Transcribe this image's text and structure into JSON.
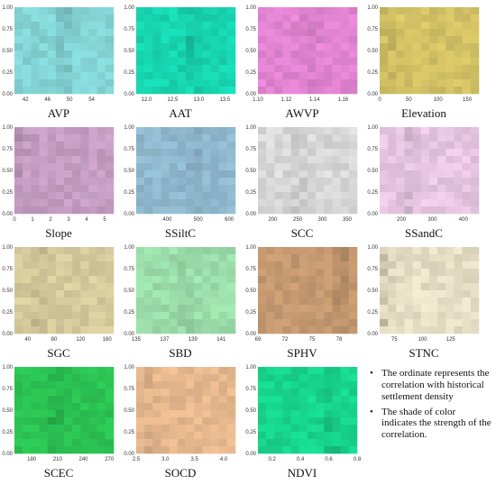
{
  "chart_data": [
    {
      "type": "heatmap",
      "title": "AVP",
      "color": "#8fe6e8",
      "ylim": [
        0,
        1
      ],
      "yticks": [
        "0.00",
        "0.25",
        "0.50",
        "0.75",
        "1.00"
      ],
      "xticks": [
        "42",
        "46",
        "50",
        "54"
      ],
      "xlim": [
        40,
        58
      ],
      "hotspot_x": 0.5
    },
    {
      "type": "heatmap",
      "title": "AAT",
      "color": "#19e8c0",
      "ylim": [
        0,
        1
      ],
      "yticks": [
        "0.00",
        "0.25",
        "0.50",
        "0.75",
        "1.00"
      ],
      "xticks": [
        "12.0",
        "12.5",
        "13.0",
        "13.5"
      ],
      "xlim": [
        11.8,
        13.7
      ],
      "hotspot_x": 0.55
    },
    {
      "type": "heatmap",
      "title": "AWVP",
      "color": "#f58fe3",
      "ylim": [
        0,
        1
      ],
      "yticks": [
        "0.00",
        "0.25",
        "0.50",
        "0.75",
        "1.00"
      ],
      "xticks": [
        "1.10",
        "1.12",
        "1.14",
        "1.16"
      ],
      "xlim": [
        1.1,
        1.17
      ],
      "hotspot_x": 0.55
    },
    {
      "type": "heatmap",
      "title": "Elevation",
      "color": "#e6d36e",
      "ylim": [
        0,
        1
      ],
      "yticks": [
        "0.00",
        "0.25",
        "0.50",
        "0.75",
        "1.00"
      ],
      "xticks": [
        "0",
        "50",
        "100",
        "150"
      ],
      "xlim": [
        0,
        170
      ],
      "hotspot_x": 0.05
    },
    {
      "type": "heatmap",
      "title": "Slope",
      "color": "#d6abd4",
      "ylim": [
        0,
        1
      ],
      "yticks": [
        "0.00",
        "0.25",
        "0.50",
        "0.75",
        "1.00"
      ],
      "xticks": [
        "0",
        "1",
        "2",
        "3",
        "4",
        "5"
      ],
      "xlim": [
        0,
        5.5
      ],
      "hotspot_x": 0.03
    },
    {
      "type": "heatmap",
      "title": "SSiltC",
      "color": "#9cc9e0",
      "ylim": [
        0,
        1
      ],
      "yticks": [
        "0.00",
        "0.25",
        "0.50",
        "0.75",
        "1.00"
      ],
      "xticks": [
        "400",
        "500",
        "600"
      ],
      "xlim": [
        300,
        620
      ],
      "hotspot_x": 0.6
    },
    {
      "type": "heatmap",
      "title": "SCC",
      "color": "#ebebeb",
      "ylim": [
        0,
        1
      ],
      "yticks": [
        "0.00",
        "0.25",
        "0.50",
        "0.75",
        "1.00"
      ],
      "xticks": [
        "200",
        "250",
        "300",
        "350"
      ],
      "xlim": [
        170,
        370
      ],
      "hotspot_x": 0.4
    },
    {
      "type": "heatmap",
      "title": "SSandC",
      "color": "#fbd6f6",
      "ylim": [
        0,
        1
      ],
      "yticks": [
        "0.00",
        "0.25",
        "0.50",
        "0.75",
        "1.00"
      ],
      "xticks": [
        "200",
        "300",
        "400"
      ],
      "xlim": [
        130,
        450
      ],
      "hotspot_x": 0.3
    },
    {
      "type": "heatmap",
      "title": "SGC",
      "color": "#e8dcaa",
      "ylim": [
        0,
        1
      ],
      "yticks": [
        "0.00",
        "0.25",
        "0.50",
        "0.75",
        "1.00"
      ],
      "xticks": [
        "40",
        "80",
        "120",
        "160"
      ],
      "xlim": [
        20,
        170
      ],
      "hotspot_x": 0.25
    },
    {
      "type": "heatmap",
      "title": "SBD",
      "color": "#a8f0b8",
      "ylim": [
        0,
        1
      ],
      "yticks": [
        "0.00",
        "0.25",
        "0.50",
        "0.75",
        "1.00"
      ],
      "xticks": [
        "135",
        "137",
        "139",
        "141"
      ],
      "xlim": [
        135,
        142
      ],
      "hotspot_x": 0.5
    },
    {
      "type": "heatmap",
      "title": "SPHV",
      "color": "#d6a67a",
      "ylim": [
        0,
        1
      ],
      "yticks": [
        "0.00",
        "0.25",
        "0.50",
        "0.75",
        "1.00"
      ],
      "xticks": [
        "69",
        "72",
        "75",
        "78"
      ],
      "xlim": [
        69,
        80
      ],
      "hotspot_x": 0.85
    },
    {
      "type": "heatmap",
      "title": "STNC",
      "color": "#fbf3d6",
      "ylim": [
        0,
        1
      ],
      "yticks": [
        "0.00",
        "0.25",
        "0.50",
        "0.75",
        "1.00"
      ],
      "xticks": [
        "75",
        "100",
        "125"
      ],
      "xlim": [
        62,
        150
      ],
      "hotspot_x": 0.05
    },
    {
      "type": "heatmap",
      "title": "SCEC",
      "color": "#2fd35a",
      "ylim": [
        0,
        1
      ],
      "yticks": [
        "0.00",
        "0.25",
        "0.50",
        "0.75",
        "1.00"
      ],
      "xticks": [
        "180",
        "210",
        "240",
        "270"
      ],
      "xlim": [
        160,
        275
      ],
      "hotspot_x": 0.4
    },
    {
      "type": "heatmap",
      "title": "SOCD",
      "color": "#fbc89a",
      "ylim": [
        0,
        1
      ],
      "yticks": [
        "0.00",
        "0.25",
        "0.50",
        "0.75",
        "1.00"
      ],
      "xticks": [
        "2.5",
        "3.0",
        "3.5",
        "4.0"
      ],
      "xlim": [
        2.5,
        4.2
      ],
      "hotspot_x": 0.1
    },
    {
      "type": "heatmap",
      "title": "NDVI",
      "color": "#19e89a",
      "ylim": [
        0,
        1
      ],
      "yticks": [
        "0.00",
        "0.25",
        "0.50",
        "0.75",
        "1.00"
      ],
      "xticks": [
        "0.2",
        "0.4",
        "0.6",
        "0.8"
      ],
      "xlim": [
        0.1,
        0.8
      ],
      "hotspot_x": 0.75
    }
  ],
  "notes": [
    "The ordinate represents the correlation with historical settlement density",
    "The shade of color indicates the strength of the correlation."
  ],
  "bullet": "•"
}
